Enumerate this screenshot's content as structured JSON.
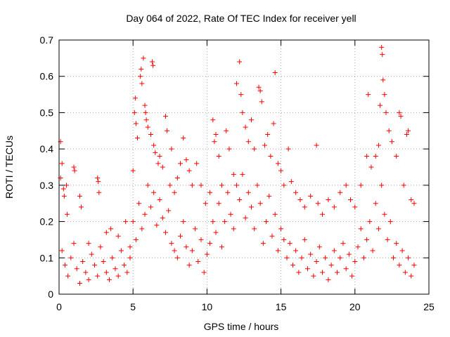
{
  "chart_data": {
    "type": "scatter",
    "title": "Day 064 of 2022, Rate Of TEC Index for receiver yell",
    "xlabel": "GPS time / hours",
    "ylabel": "ROTI / TECUs",
    "xlim": [
      0,
      25
    ],
    "ylim": [
      0,
      0.7
    ],
    "x_ticks": [
      0,
      5,
      10,
      15,
      20,
      25
    ],
    "y_ticks": [
      0,
      0.1,
      0.2,
      0.3,
      0.4,
      0.5,
      0.6,
      0.7
    ],
    "x_tick_labels": [
      "0",
      "5",
      "10",
      "15",
      "20",
      "25"
    ],
    "y_tick_labels": [
      "0",
      "0.1",
      "0.2",
      "0.3",
      "0.4",
      "0.5",
      "0.6",
      "0.7"
    ],
    "grid": true,
    "marker": "+",
    "series_color": "#ff0000",
    "points": [
      [
        0.1,
        0.42
      ],
      [
        0.1,
        0.32
      ],
      [
        0.2,
        0.36
      ],
      [
        0.3,
        0.29
      ],
      [
        0.35,
        0.27
      ],
      [
        0.5,
        0.3
      ],
      [
        0.55,
        0.22
      ],
      [
        1.0,
        0.35
      ],
      [
        1.05,
        0.34
      ],
      [
        1.4,
        0.27
      ],
      [
        1.5,
        0.24
      ],
      [
        2.0,
        0.14
      ],
      [
        2.6,
        0.32
      ],
      [
        2.65,
        0.31
      ],
      [
        2.7,
        0.28
      ],
      [
        3.2,
        0.17
      ],
      [
        3.5,
        0.18
      ],
      [
        4.0,
        0.16
      ],
      [
        4.5,
        0.2
      ],
      [
        4.8,
        0.13
      ],
      [
        5.0,
        0.34
      ],
      [
        5.1,
        0.5
      ],
      [
        5.15,
        0.54
      ],
      [
        5.2,
        0.47
      ],
      [
        5.3,
        0.43
      ],
      [
        5.5,
        0.6
      ],
      [
        5.55,
        0.62
      ],
      [
        5.6,
        0.58
      ],
      [
        5.7,
        0.65
      ],
      [
        5.8,
        0.52
      ],
      [
        5.85,
        0.5
      ],
      [
        5.9,
        0.48
      ],
      [
        6.0,
        0.46
      ],
      [
        6.2,
        0.44
      ],
      [
        6.3,
        0.64
      ],
      [
        6.35,
        0.63
      ],
      [
        6.4,
        0.41
      ],
      [
        6.5,
        0.39
      ],
      [
        6.7,
        0.36
      ],
      [
        6.8,
        0.38
      ],
      [
        7.0,
        0.35
      ],
      [
        7.2,
        0.49
      ],
      [
        7.3,
        0.45
      ],
      [
        7.5,
        0.3
      ],
      [
        7.6,
        0.4
      ],
      [
        7.8,
        0.28
      ],
      [
        8.0,
        0.32
      ],
      [
        8.2,
        0.36
      ],
      [
        8.4,
        0.43
      ],
      [
        8.6,
        0.37
      ],
      [
        8.8,
        0.34
      ],
      [
        9.0,
        0.3
      ],
      [
        9.3,
        0.36
      ],
      [
        9.6,
        0.3
      ],
      [
        9.9,
        0.25
      ],
      [
        10.2,
        0.28
      ],
      [
        10.4,
        0.48
      ],
      [
        10.5,
        0.42
      ],
      [
        10.6,
        0.44
      ],
      [
        10.8,
        0.38
      ],
      [
        11.0,
        0.3
      ],
      [
        11.3,
        0.45
      ],
      [
        11.5,
        0.4
      ],
      [
        11.8,
        0.33
      ],
      [
        12.0,
        0.58
      ],
      [
        12.2,
        0.64
      ],
      [
        12.3,
        0.55
      ],
      [
        12.4,
        0.5
      ],
      [
        12.6,
        0.46
      ],
      [
        12.8,
        0.42
      ],
      [
        13.0,
        0.48
      ],
      [
        13.2,
        0.4
      ],
      [
        13.5,
        0.57
      ],
      [
        13.6,
        0.56
      ],
      [
        13.7,
        0.53
      ],
      [
        13.9,
        0.41
      ],
      [
        14.1,
        0.44
      ],
      [
        14.3,
        0.38
      ],
      [
        14.5,
        0.47
      ],
      [
        14.6,
        0.61
      ],
      [
        14.8,
        0.36
      ],
      [
        15.0,
        0.34
      ],
      [
        15.2,
        0.3
      ],
      [
        15.5,
        0.4
      ],
      [
        15.7,
        0.31
      ],
      [
        16.0,
        0.28
      ],
      [
        16.3,
        0.26
      ],
      [
        16.6,
        0.24
      ],
      [
        17.0,
        0.27
      ],
      [
        17.4,
        0.41
      ],
      [
        17.5,
        0.25
      ],
      [
        17.8,
        0.22
      ],
      [
        18.2,
        0.26
      ],
      [
        18.6,
        0.24
      ],
      [
        19.0,
        0.28
      ],
      [
        19.4,
        0.3
      ],
      [
        19.7,
        0.26
      ],
      [
        20.0,
        0.24
      ],
      [
        20.4,
        0.3
      ],
      [
        20.8,
        0.38
      ],
      [
        20.9,
        0.55
      ],
      [
        21.1,
        0.35
      ],
      [
        21.4,
        0.38
      ],
      [
        21.6,
        0.41
      ],
      [
        21.7,
        0.52
      ],
      [
        21.8,
        0.68
      ],
      [
        21.85,
        0.66
      ],
      [
        21.9,
        0.59
      ],
      [
        22.0,
        0.55
      ],
      [
        22.1,
        0.5
      ],
      [
        22.3,
        0.45
      ],
      [
        22.5,
        0.42
      ],
      [
        22.8,
        0.38
      ],
      [
        23.0,
        0.5
      ],
      [
        23.1,
        0.49
      ],
      [
        23.3,
        0.3
      ],
      [
        23.5,
        0.44
      ],
      [
        23.6,
        0.45
      ],
      [
        23.8,
        0.26
      ],
      [
        24.0,
        0.25
      ],
      [
        0.2,
        0.12
      ],
      [
        0.4,
        0.08
      ],
      [
        0.6,
        0.05
      ],
      [
        0.8,
        0.1
      ],
      [
        1.0,
        0.14
      ],
      [
        1.2,
        0.07
      ],
      [
        1.4,
        0.03
      ],
      [
        1.6,
        0.09
      ],
      [
        1.8,
        0.06
      ],
      [
        2.0,
        0.04
      ],
      [
        2.2,
        0.11
      ],
      [
        2.4,
        0.08
      ],
      [
        2.6,
        0.05
      ],
      [
        2.8,
        0.13
      ],
      [
        3.0,
        0.09
      ],
      [
        3.2,
        0.06
      ],
      [
        3.4,
        0.04
      ],
      [
        3.6,
        0.1
      ],
      [
        3.8,
        0.07
      ],
      [
        4.0,
        0.05
      ],
      [
        4.2,
        0.12
      ],
      [
        4.4,
        0.08
      ],
      [
        4.6,
        0.06
      ],
      [
        4.8,
        0.1
      ],
      [
        5.0,
        0.2
      ],
      [
        5.2,
        0.15
      ],
      [
        5.4,
        0.25
      ],
      [
        5.6,
        0.18
      ],
      [
        5.8,
        0.22
      ],
      [
        6.0,
        0.3
      ],
      [
        6.2,
        0.24
      ],
      [
        6.4,
        0.28
      ],
      [
        6.6,
        0.19
      ],
      [
        6.8,
        0.26
      ],
      [
        7.0,
        0.21
      ],
      [
        7.2,
        0.17
      ],
      [
        7.4,
        0.23
      ],
      [
        7.6,
        0.14
      ],
      [
        7.8,
        0.12
      ],
      [
        8.0,
        0.1
      ],
      [
        8.2,
        0.16
      ],
      [
        8.4,
        0.2
      ],
      [
        8.6,
        0.13
      ],
      [
        8.8,
        0.08
      ],
      [
        9.0,
        0.12
      ],
      [
        9.2,
        0.18
      ],
      [
        9.4,
        0.09
      ],
      [
        9.6,
        0.15
      ],
      [
        9.8,
        0.06
      ],
      [
        10.0,
        0.11
      ],
      [
        10.2,
        0.14
      ],
      [
        10.4,
        0.2
      ],
      [
        10.6,
        0.17
      ],
      [
        10.8,
        0.25
      ],
      [
        11.0,
        0.13
      ],
      [
        11.2,
        0.2
      ],
      [
        11.4,
        0.28
      ],
      [
        11.6,
        0.22
      ],
      [
        11.8,
        0.18
      ],
      [
        12.0,
        0.3
      ],
      [
        12.2,
        0.26
      ],
      [
        12.4,
        0.33
      ],
      [
        12.6,
        0.21
      ],
      [
        12.8,
        0.28
      ],
      [
        13.0,
        0.24
      ],
      [
        13.2,
        0.18
      ],
      [
        13.4,
        0.3
      ],
      [
        13.6,
        0.25
      ],
      [
        13.8,
        0.14
      ],
      [
        14.0,
        0.2
      ],
      [
        14.2,
        0.27
      ],
      [
        14.4,
        0.16
      ],
      [
        14.6,
        0.22
      ],
      [
        14.8,
        0.12
      ],
      [
        15.0,
        0.18
      ],
      [
        15.2,
        0.15
      ],
      [
        15.4,
        0.1
      ],
      [
        15.6,
        0.14
      ],
      [
        15.8,
        0.08
      ],
      [
        16.0,
        0.12
      ],
      [
        16.2,
        0.06
      ],
      [
        16.4,
        0.1
      ],
      [
        16.6,
        0.15
      ],
      [
        16.8,
        0.07
      ],
      [
        17.0,
        0.11
      ],
      [
        17.2,
        0.05
      ],
      [
        17.4,
        0.09
      ],
      [
        17.6,
        0.13
      ],
      [
        17.8,
        0.06
      ],
      [
        18.0,
        0.1
      ],
      [
        18.2,
        0.04
      ],
      [
        18.4,
        0.08
      ],
      [
        18.6,
        0.12
      ],
      [
        18.8,
        0.06
      ],
      [
        19.0,
        0.1
      ],
      [
        19.2,
        0.14
      ],
      [
        19.4,
        0.07
      ],
      [
        19.6,
        0.11
      ],
      [
        19.8,
        0.05
      ],
      [
        20.0,
        0.09
      ],
      [
        20.2,
        0.13
      ],
      [
        20.4,
        0.18
      ],
      [
        20.6,
        0.1
      ],
      [
        20.8,
        0.15
      ],
      [
        21.0,
        0.2
      ],
      [
        21.2,
        0.12
      ],
      [
        21.4,
        0.25
      ],
      [
        21.6,
        0.18
      ],
      [
        21.8,
        0.3
      ],
      [
        22.0,
        0.22
      ],
      [
        22.2,
        0.15
      ],
      [
        22.4,
        0.2
      ],
      [
        22.6,
        0.1
      ],
      [
        22.8,
        0.14
      ],
      [
        23.0,
        0.08
      ],
      [
        23.2,
        0.12
      ],
      [
        23.4,
        0.06
      ],
      [
        23.6,
        0.1
      ],
      [
        23.8,
        0.05
      ],
      [
        24.0,
        0.08
      ]
    ]
  }
}
